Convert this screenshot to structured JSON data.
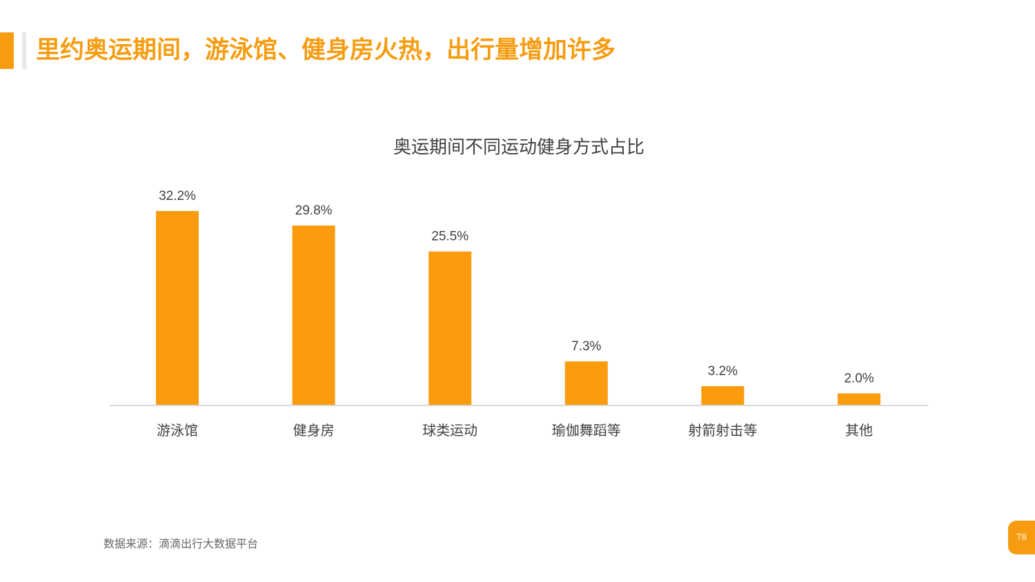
{
  "slide": {
    "title": "里约奥运期间，游泳馆、健身房火热，出行量增加许多",
    "source": "数据来源：滴滴出行大数据平台",
    "page_number": "78"
  },
  "colors": {
    "accent": "#f79c10",
    "bar": "#fa9c0e",
    "axis": "#d9d9d9",
    "text": "#404040"
  },
  "chart_data": {
    "type": "bar",
    "title": "奥运期间不同运动健身方式占比",
    "categories": [
      "游泳馆",
      "健身房",
      "球类运动",
      "瑜伽舞蹈等",
      "射箭射击等",
      "其他"
    ],
    "values": [
      32.2,
      29.8,
      25.5,
      7.3,
      3.2,
      2.0
    ],
    "value_labels": [
      "32.2%",
      "29.8%",
      "25.5%",
      "7.3%",
      "3.2%",
      "2.0%"
    ],
    "unit": "%",
    "ylim": [
      0,
      32.2
    ],
    "grid": false,
    "legend": "none"
  }
}
